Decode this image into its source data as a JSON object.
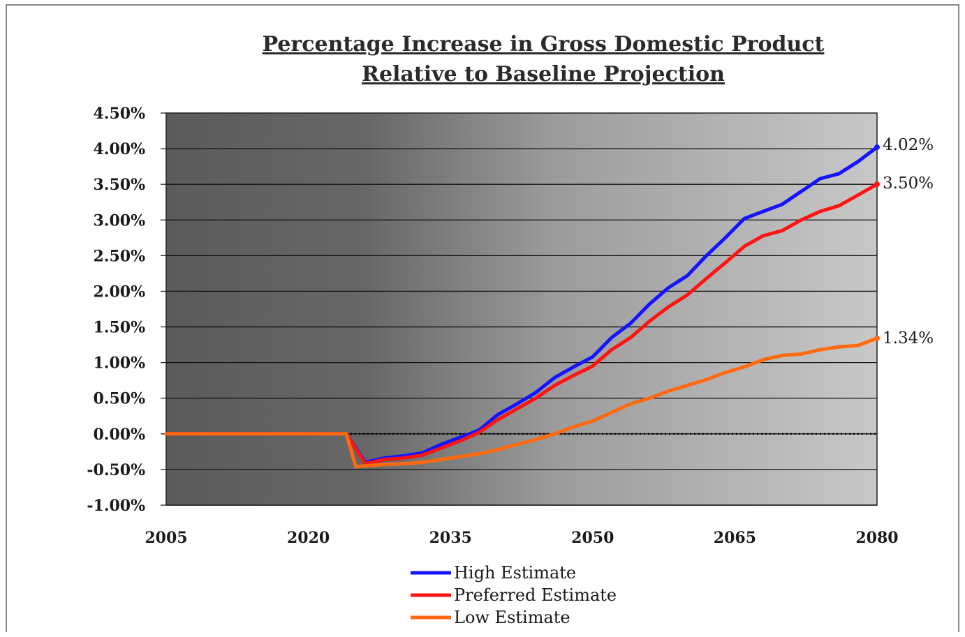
{
  "chart_data": {
    "type": "line",
    "title_line1": "Percentage Increase in Gross Domestic Product",
    "title_line2": "Relative to Baseline Projection",
    "xlabel": "",
    "ylabel": "",
    "xlim": [
      2005,
      2080
    ],
    "ylim": [
      -1.0,
      4.5
    ],
    "x_ticks": [
      "2005",
      "2020",
      "2035",
      "2050",
      "2065",
      "2080"
    ],
    "x_tick_values": [
      2005,
      2020,
      2035,
      2050,
      2065,
      2080
    ],
    "y_ticks": [
      "4.50%",
      "4.00%",
      "3.50%",
      "3.00%",
      "2.50%",
      "2.00%",
      "1.50%",
      "1.00%",
      "0.50%",
      "0.00%",
      "-0.50%",
      "-1.00%"
    ],
    "y_tick_values": [
      4.5,
      4.0,
      3.5,
      3.0,
      2.5,
      2.0,
      1.5,
      1.0,
      0.5,
      0.0,
      -0.5,
      -1.0
    ],
    "grid": true,
    "legend_position": "bottom-center",
    "series": [
      {
        "name": "High Estimate",
        "color": "#1414ff",
        "end_label": "4.02%",
        "x": [
          2005,
          2024,
          2026,
          2028,
          2030,
          2032,
          2034,
          2036,
          2038,
          2040,
          2042,
          2044,
          2046,
          2048,
          2050,
          2052,
          2054,
          2056,
          2058,
          2060,
          2062,
          2064,
          2066,
          2068,
          2070,
          2072,
          2074,
          2076,
          2078,
          2080
        ],
        "y": [
          0.0,
          0.0,
          -0.4,
          -0.34,
          -0.31,
          -0.27,
          -0.15,
          -0.05,
          0.05,
          0.27,
          0.42,
          0.58,
          0.79,
          0.94,
          1.08,
          1.35,
          1.55,
          1.82,
          2.05,
          2.22,
          2.5,
          2.75,
          3.02,
          3.12,
          3.22,
          3.4,
          3.58,
          3.65,
          3.82,
          4.02
        ]
      },
      {
        "name": "Preferred Estimate",
        "color": "#ff1414",
        "end_label": "3.50%",
        "x": [
          2005,
          2024,
          2026,
          2028,
          2030,
          2032,
          2034,
          2036,
          2038,
          2040,
          2042,
          2044,
          2046,
          2048,
          2050,
          2052,
          2054,
          2056,
          2058,
          2060,
          2062,
          2064,
          2066,
          2068,
          2070,
          2072,
          2074,
          2076,
          2078,
          2080
        ],
        "y": [
          0.0,
          0.0,
          -0.42,
          -0.36,
          -0.34,
          -0.3,
          -0.2,
          -0.1,
          0.02,
          0.2,
          0.35,
          0.5,
          0.68,
          0.82,
          0.95,
          1.18,
          1.35,
          1.58,
          1.78,
          1.95,
          2.18,
          2.4,
          2.63,
          2.78,
          2.85,
          3.0,
          3.12,
          3.2,
          3.35,
          3.5
        ]
      },
      {
        "name": "Low Estimate",
        "color": "#ff6a10",
        "end_label": "1.34%",
        "x": [
          2005,
          2024,
          2025,
          2028,
          2030,
          2032,
          2034,
          2036,
          2038,
          2040,
          2042,
          2044,
          2046,
          2048,
          2050,
          2052,
          2054,
          2056,
          2058,
          2060,
          2062,
          2064,
          2066,
          2068,
          2070,
          2072,
          2074,
          2076,
          2078,
          2080
        ],
        "y": [
          0.0,
          0.0,
          -0.46,
          -0.43,
          -0.42,
          -0.4,
          -0.36,
          -0.32,
          -0.28,
          -0.22,
          -0.15,
          -0.08,
          0.0,
          0.1,
          0.18,
          0.3,
          0.42,
          0.5,
          0.6,
          0.68,
          0.76,
          0.86,
          0.94,
          1.04,
          1.1,
          1.12,
          1.18,
          1.22,
          1.24,
          1.34
        ]
      }
    ]
  }
}
